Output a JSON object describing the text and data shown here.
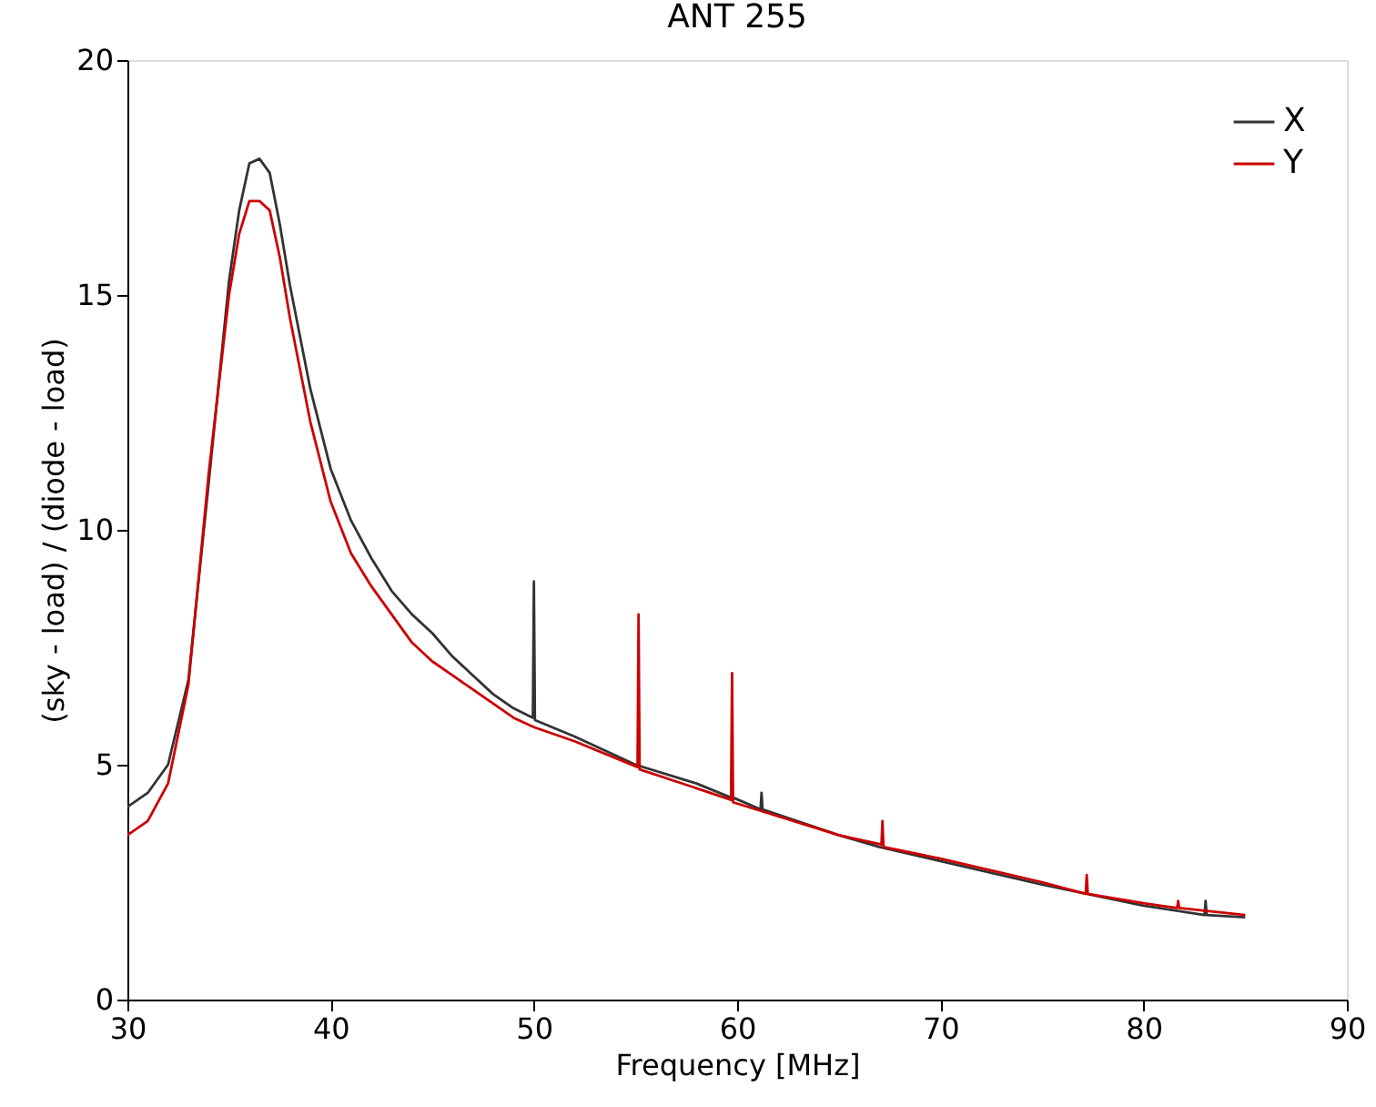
{
  "chart_data": {
    "type": "line",
    "title": "ANT 255",
    "xlabel": "Frequency [MHz]",
    "ylabel": "(sky - load) / (diode - load)",
    "xlim": [
      30,
      90
    ],
    "xticks": [
      30,
      40,
      50,
      60,
      70,
      80,
      90
    ],
    "ylim": [
      0,
      20
    ],
    "yticks": [
      0,
      5,
      10,
      15,
      20
    ],
    "grid": false,
    "legend": "top right",
    "series": [
      {
        "name": "X",
        "color": "#333333",
        "x": [
          30,
          31,
          32,
          33,
          34,
          35,
          35.5,
          36,
          36.5,
          37,
          37.5,
          38,
          39,
          40,
          41,
          42,
          43,
          44,
          45,
          46,
          47,
          48,
          49,
          49.95,
          50,
          50.05,
          52,
          55,
          58,
          59.7,
          59.8,
          61.15,
          61.2,
          61.25,
          65,
          67,
          70,
          75,
          80,
          83,
          83.05,
          83.1,
          85
        ],
        "values": [
          4.1,
          4.4,
          5.0,
          6.8,
          11.0,
          15.3,
          16.8,
          17.8,
          17.9,
          17.6,
          16.5,
          15.2,
          13.0,
          11.3,
          10.2,
          9.4,
          8.7,
          8.2,
          7.8,
          7.3,
          6.9,
          6.5,
          6.2,
          6.0,
          8.9,
          5.95,
          5.6,
          5.0,
          4.6,
          4.3,
          4.3,
          4.05,
          4.4,
          4.05,
          3.5,
          3.25,
          2.95,
          2.45,
          2.0,
          1.8,
          2.1,
          1.8,
          1.75
        ]
      },
      {
        "name": "Y",
        "color": "#cc0000",
        "x": [
          30,
          31,
          32,
          33,
          34,
          35,
          35.5,
          36,
          36.5,
          37,
          37.5,
          38,
          39,
          40,
          41,
          42,
          43,
          44,
          45,
          46,
          47,
          48,
          49,
          50,
          52,
          55.1,
          55.15,
          55.2,
          58,
          59.7,
          59.75,
          59.8,
          65,
          67.1,
          67.15,
          67.2,
          70,
          75,
          77.15,
          77.2,
          77.25,
          80,
          81.65,
          81.7,
          81.75,
          85
        ],
        "values": [
          3.5,
          3.8,
          4.6,
          6.7,
          11.2,
          15.0,
          16.3,
          17.0,
          17.0,
          16.8,
          15.8,
          14.5,
          12.3,
          10.6,
          9.5,
          8.8,
          8.2,
          7.6,
          7.2,
          6.9,
          6.6,
          6.3,
          6.0,
          5.8,
          5.5,
          4.95,
          8.2,
          4.9,
          4.5,
          4.25,
          6.95,
          4.2,
          3.5,
          3.3,
          3.8,
          3.25,
          3.0,
          2.5,
          2.25,
          2.65,
          2.25,
          2.05,
          1.95,
          2.1,
          1.95,
          1.8
        ]
      }
    ]
  }
}
